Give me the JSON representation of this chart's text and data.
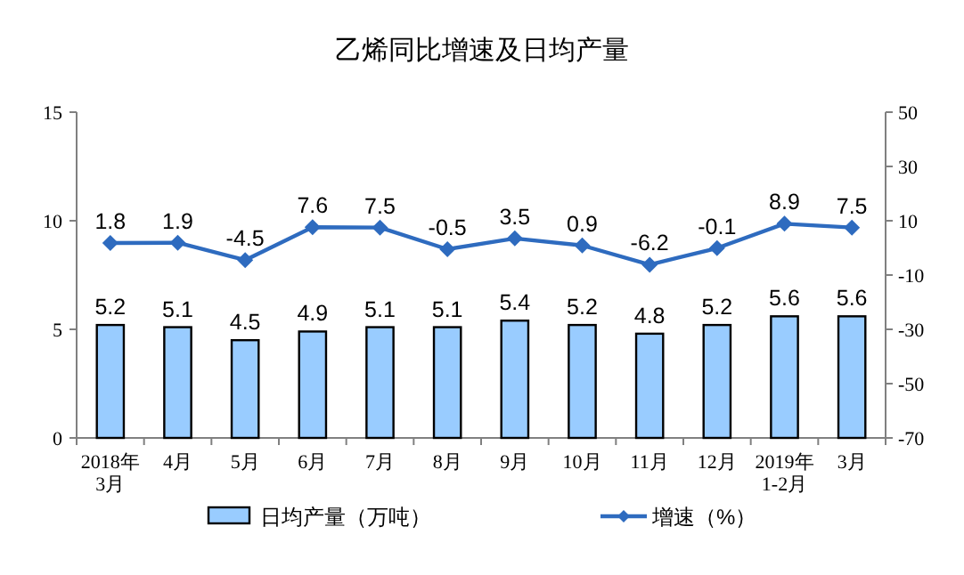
{
  "chart_data": {
    "type": "bar",
    "title": "乙烯同比增速及日均产量",
    "categories": [
      "2018年\n3月",
      "4月",
      "5月",
      "6月",
      "7月",
      "8月",
      "9月",
      "10月",
      "11月",
      "12月",
      "2019年\n1-2月",
      "3月"
    ],
    "series": [
      {
        "name": "日均产量（万吨）",
        "color": "#99ccff",
        "values": [
          5.2,
          5.1,
          4.5,
          4.9,
          5.1,
          5.1,
          5.4,
          5.2,
          4.8,
          5.2,
          5.6,
          5.6
        ]
      },
      {
        "name": "增速（%）",
        "type": "line",
        "axis": "y2",
        "color": "#2e6bbf",
        "marker": "diamond",
        "values": [
          1.8,
          1.9,
          -4.5,
          7.6,
          7.5,
          -0.5,
          3.5,
          0.9,
          -6.2,
          -0.1,
          8.9,
          7.5
        ]
      }
    ],
    "ylim": [
      0,
      15
    ],
    "yticks": [
      0,
      5,
      10,
      15
    ],
    "y2lim": [
      -70,
      50
    ],
    "y2ticks": [
      -70,
      -50,
      -30,
      -10,
      10,
      30,
      50
    ],
    "data_labels": true,
    "legend": "bottom",
    "grid": false
  }
}
